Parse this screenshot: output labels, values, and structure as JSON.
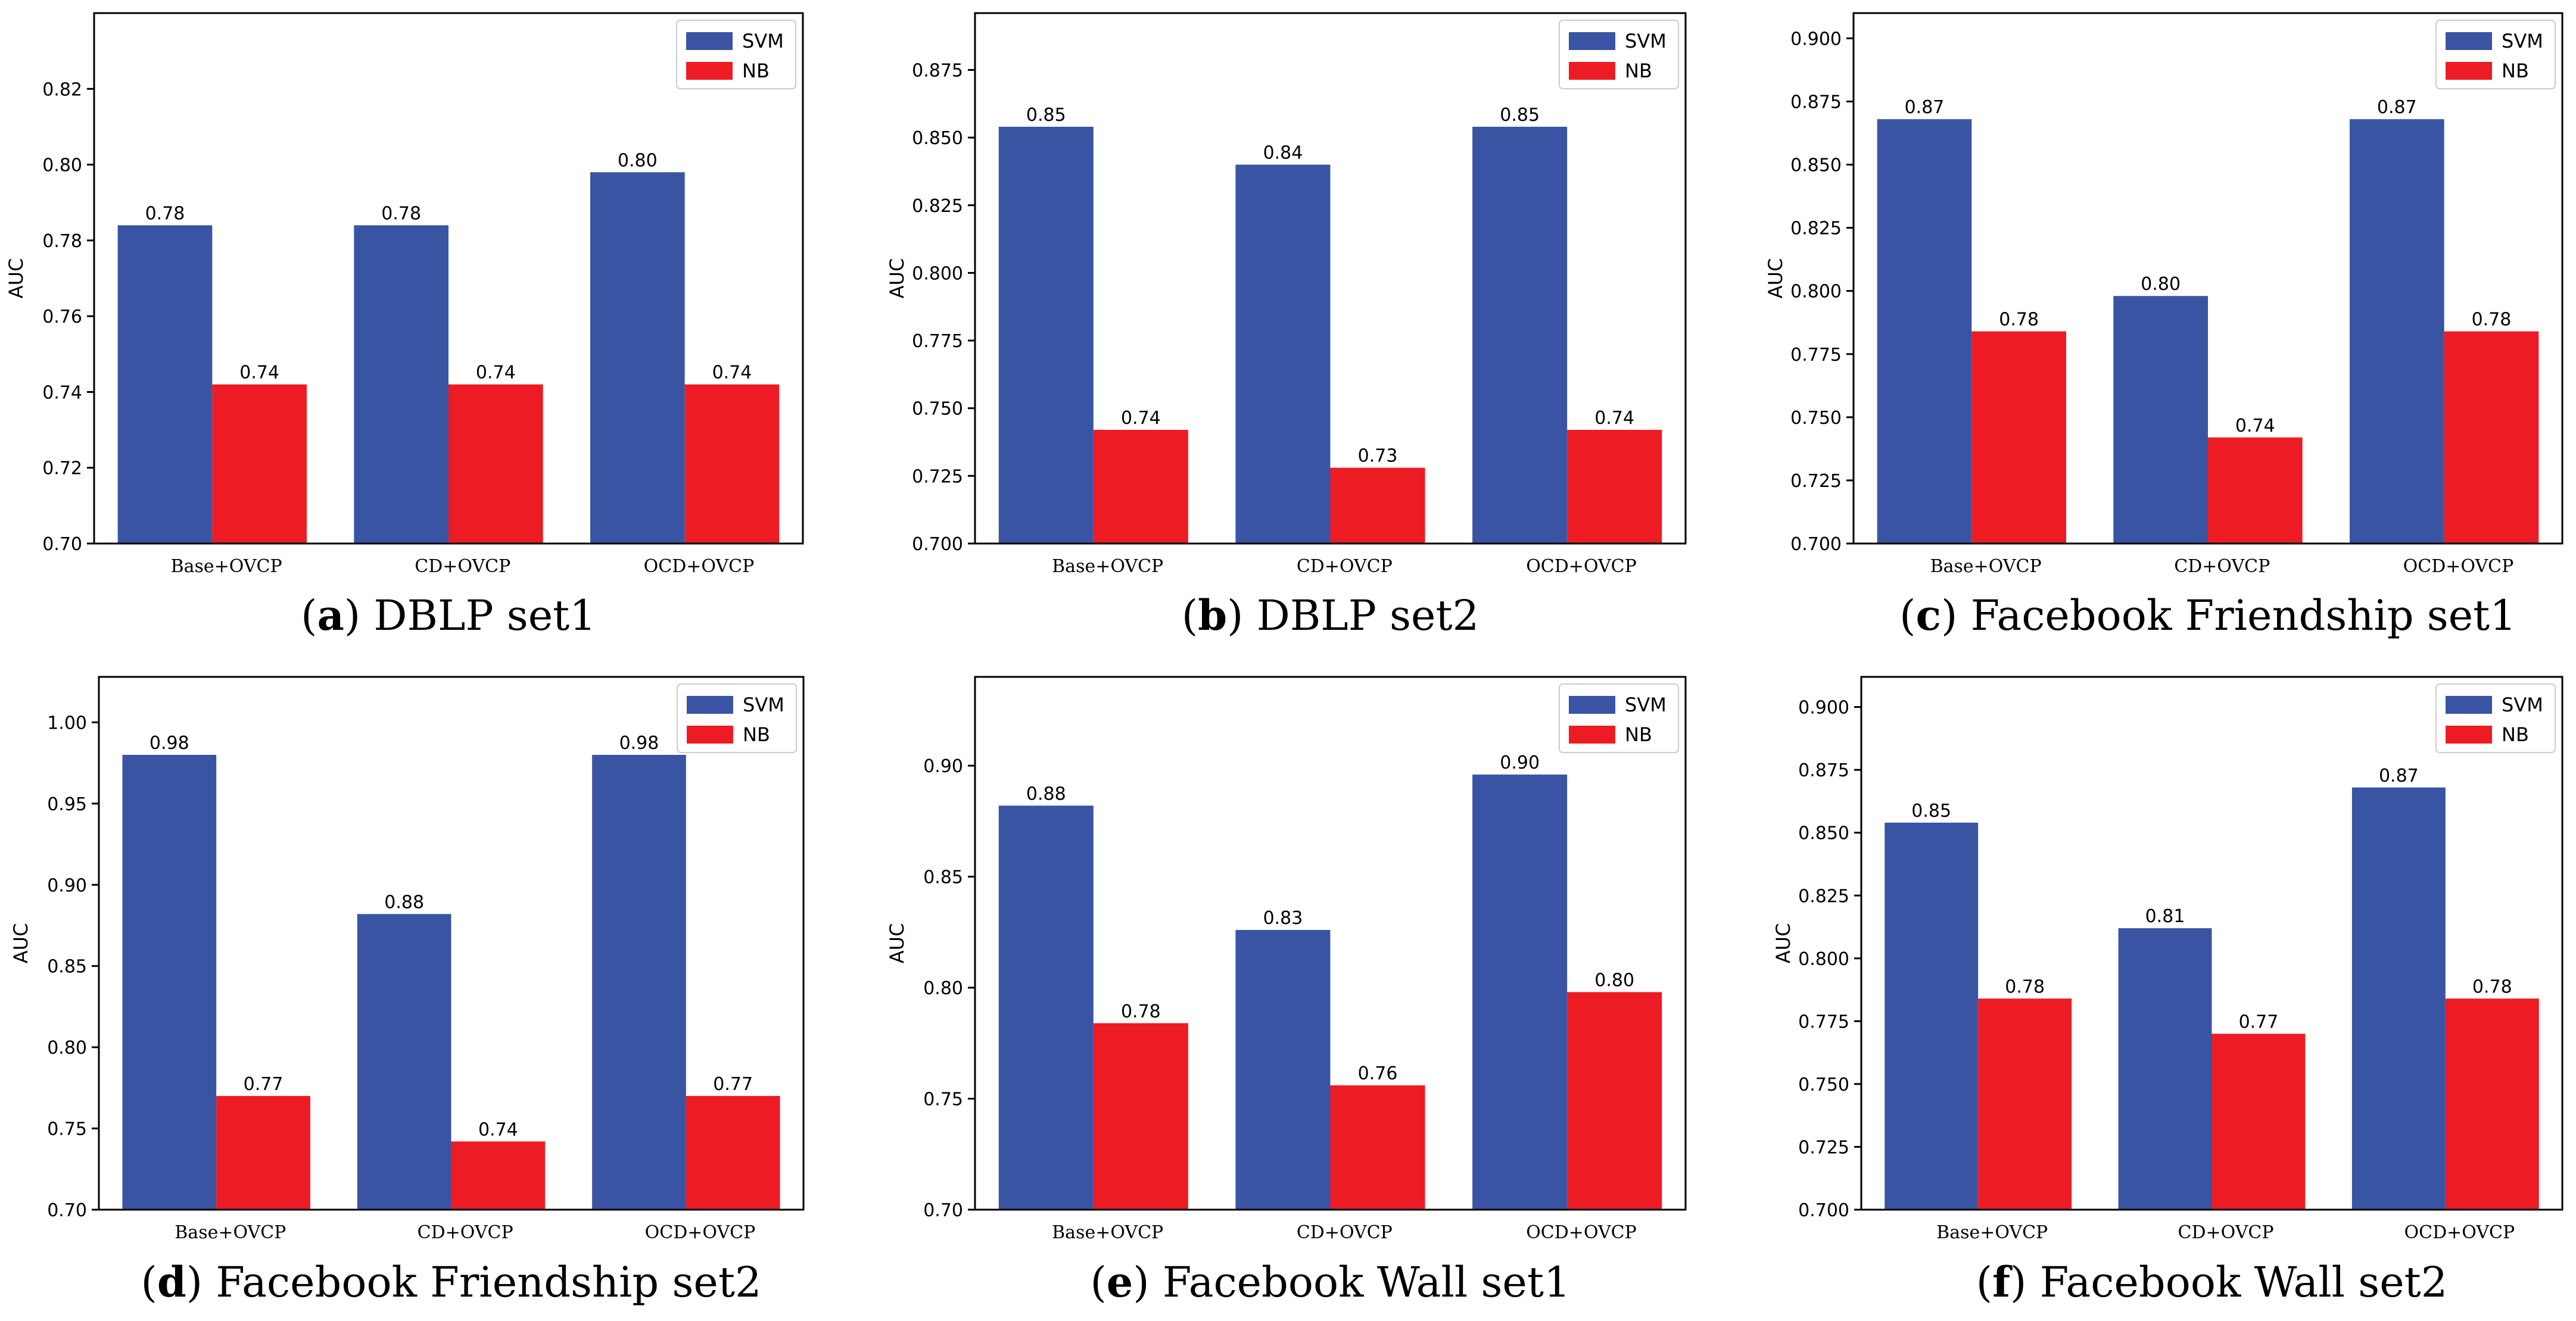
{
  "colors": {
    "svm": "#3a54a4",
    "nb": "#ed1c24",
    "axis": "#000000",
    "background": "#ffffff"
  },
  "chart_data": [
    {
      "type": "bar",
      "panel_letter": "a",
      "caption": "DBLP set1",
      "ylabel": "AUC",
      "categories": [
        "Base+OVCP",
        "CD+OVCP",
        "OCD+OVCP"
      ],
      "series": [
        {
          "name": "SVM",
          "values": [
            0.784,
            0.784,
            0.798
          ],
          "labels": [
            "0.78",
            "0.78",
            "0.80"
          ]
        },
        {
          "name": "NB",
          "values": [
            0.742,
            0.742,
            0.742
          ],
          "labels": [
            "0.74",
            "0.74",
            "0.74"
          ]
        }
      ],
      "ylim": [
        0.7,
        0.84
      ],
      "yticks": [
        0.7,
        0.72,
        0.74,
        0.76,
        0.78,
        0.8,
        0.82
      ],
      "ytick_labels": [
        "0.70",
        "0.72",
        "0.74",
        "0.76",
        "0.78",
        "0.80",
        "0.82"
      ],
      "legend": "top-right"
    },
    {
      "type": "bar",
      "panel_letter": "b",
      "caption": "DBLP set2",
      "ylabel": "AUC",
      "categories": [
        "Base+OVCP",
        "CD+OVCP",
        "OCD+OVCP"
      ],
      "series": [
        {
          "name": "SVM",
          "values": [
            0.854,
            0.84,
            0.854
          ],
          "labels": [
            "0.85",
            "0.84",
            "0.85"
          ]
        },
        {
          "name": "NB",
          "values": [
            0.742,
            0.728,
            0.742
          ],
          "labels": [
            "0.74",
            "0.73",
            "0.74"
          ]
        }
      ],
      "ylim": [
        0.7,
        0.896
      ],
      "yticks": [
        0.7,
        0.725,
        0.75,
        0.775,
        0.8,
        0.825,
        0.85,
        0.875
      ],
      "ytick_labels": [
        "0.700",
        "0.725",
        "0.750",
        "0.775",
        "0.800",
        "0.825",
        "0.850",
        "0.875"
      ],
      "legend": "top-right"
    },
    {
      "type": "bar",
      "panel_letter": "c",
      "caption": "Facebook Friendship set1",
      "ylabel": "AUC",
      "categories": [
        "Base+OVCP",
        "CD+OVCP",
        "OCD+OVCP"
      ],
      "series": [
        {
          "name": "SVM",
          "values": [
            0.868,
            0.798,
            0.868
          ],
          "labels": [
            "0.87",
            "0.80",
            "0.87"
          ]
        },
        {
          "name": "NB",
          "values": [
            0.784,
            0.742,
            0.784
          ],
          "labels": [
            "0.78",
            "0.74",
            "0.78"
          ]
        }
      ],
      "ylim": [
        0.7,
        0.91
      ],
      "yticks": [
        0.7,
        0.725,
        0.75,
        0.775,
        0.8,
        0.825,
        0.85,
        0.875,
        0.9
      ],
      "ytick_labels": [
        "0.700",
        "0.725",
        "0.750",
        "0.775",
        "0.800",
        "0.825",
        "0.850",
        "0.875",
        "0.900"
      ],
      "legend": "top-right"
    },
    {
      "type": "bar",
      "panel_letter": "d",
      "caption": "Facebook Friendship set2",
      "ylabel": "AUC",
      "categories": [
        "Base+OVCP",
        "CD+OVCP",
        "OCD+OVCP"
      ],
      "series": [
        {
          "name": "SVM",
          "values": [
            0.98,
            0.882,
            0.98
          ],
          "labels": [
            "0.98",
            "0.88",
            "0.98"
          ]
        },
        {
          "name": "NB",
          "values": [
            0.77,
            0.742,
            0.77
          ],
          "labels": [
            "0.77",
            "0.74",
            "0.77"
          ]
        }
      ],
      "ylim": [
        0.7,
        1.028
      ],
      "yticks": [
        0.7,
        0.75,
        0.8,
        0.85,
        0.9,
        0.95,
        1.0
      ],
      "ytick_labels": [
        "0.70",
        "0.75",
        "0.80",
        "0.85",
        "0.90",
        "0.95",
        "1.00"
      ],
      "legend": "top-right"
    },
    {
      "type": "bar",
      "panel_letter": "e",
      "caption": "Facebook Wall set1",
      "ylabel": "AUC",
      "categories": [
        "Base+OVCP",
        "CD+OVCP",
        "OCD+OVCP"
      ],
      "series": [
        {
          "name": "SVM",
          "values": [
            0.882,
            0.826,
            0.896
          ],
          "labels": [
            "0.88",
            "0.83",
            "0.90"
          ]
        },
        {
          "name": "NB",
          "values": [
            0.784,
            0.756,
            0.798
          ],
          "labels": [
            "0.78",
            "0.76",
            "0.80"
          ]
        }
      ],
      "ylim": [
        0.7,
        0.94
      ],
      "yticks": [
        0.7,
        0.75,
        0.8,
        0.85,
        0.9
      ],
      "ytick_labels": [
        "0.70",
        "0.75",
        "0.80",
        "0.85",
        "0.90"
      ],
      "legend": "top-right"
    },
    {
      "type": "bar",
      "panel_letter": "f",
      "caption": "Facebook Wall set2",
      "ylabel": "AUC",
      "categories": [
        "Base+OVCP",
        "CD+OVCP",
        "OCD+OVCP"
      ],
      "series": [
        {
          "name": "SVM",
          "values": [
            0.854,
            0.812,
            0.868
          ],
          "labels": [
            "0.85",
            "0.81",
            "0.87"
          ]
        },
        {
          "name": "NB",
          "values": [
            0.784,
            0.77,
            0.784
          ],
          "labels": [
            "0.78",
            "0.77",
            "0.78"
          ]
        }
      ],
      "ylim": [
        0.7,
        0.912
      ],
      "yticks": [
        0.7,
        0.725,
        0.75,
        0.775,
        0.8,
        0.825,
        0.85,
        0.875,
        0.9
      ],
      "ytick_labels": [
        "0.700",
        "0.725",
        "0.750",
        "0.775",
        "0.800",
        "0.825",
        "0.850",
        "0.875",
        "0.900"
      ],
      "legend": "top-right"
    }
  ]
}
